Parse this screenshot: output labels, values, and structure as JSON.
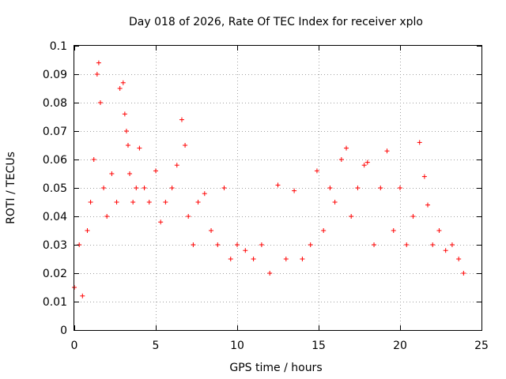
{
  "chart_data": {
    "type": "scatter",
    "title": "Day 018 of 2026, Rate Of TEC Index for receiver xplo",
    "xlabel": "GPS time / hours",
    "ylabel": "ROTI / TECUs",
    "xlim": [
      0,
      25
    ],
    "ylim": [
      0,
      0.1
    ],
    "xticks": [
      0,
      5,
      10,
      15,
      20,
      25
    ],
    "xtick_labels": [
      "0",
      "5",
      "10",
      "15",
      "20",
      "25"
    ],
    "yticks": [
      0,
      0.01,
      0.02,
      0.03,
      0.04,
      0.05,
      0.06,
      0.07,
      0.08,
      0.09,
      0.1
    ],
    "ytick_labels": [
      "0",
      "0.01",
      "0.02",
      "0.03",
      "0.04",
      "0.05",
      "0.06",
      "0.07",
      "0.08",
      "0.09",
      "0.1"
    ],
    "grid": true,
    "marker": "+",
    "marker_color": "#ff0000",
    "series": [
      {
        "x": [
          0.0,
          0.3,
          0.5,
          0.8,
          1.0,
          1.2,
          1.4,
          1.5,
          1.6,
          1.8,
          2.0,
          2.3,
          2.6,
          2.8,
          3.0,
          3.1,
          3.2,
          3.3,
          3.4,
          3.6,
          3.8,
          4.0,
          4.3,
          4.6,
          5.0,
          5.3,
          5.6,
          6.0,
          6.3,
          6.6,
          6.8,
          7.0,
          7.3,
          7.6,
          8.0,
          8.4,
          8.8,
          9.2,
          9.6,
          10.0,
          10.5,
          11.0,
          11.5,
          12.0,
          12.5,
          13.0,
          13.5,
          14.0,
          14.5,
          14.9,
          15.3,
          15.7,
          16.0,
          16.4,
          16.7,
          17.0,
          17.4,
          17.8,
          18.0,
          18.4,
          18.8,
          19.2,
          19.6,
          20.0,
          20.4,
          20.8,
          21.2,
          21.5,
          21.7,
          22.0,
          22.4,
          22.8,
          23.2,
          23.6,
          23.9
        ],
        "y": [
          0.015,
          0.03,
          0.012,
          0.035,
          0.045,
          0.06,
          0.09,
          0.094,
          0.08,
          0.05,
          0.04,
          0.055,
          0.045,
          0.085,
          0.087,
          0.076,
          0.07,
          0.065,
          0.055,
          0.045,
          0.05,
          0.064,
          0.05,
          0.045,
          0.056,
          0.038,
          0.045,
          0.05,
          0.058,
          0.074,
          0.065,
          0.04,
          0.03,
          0.045,
          0.048,
          0.035,
          0.03,
          0.05,
          0.025,
          0.03,
          0.028,
          0.025,
          0.03,
          0.02,
          0.051,
          0.025,
          0.049,
          0.025,
          0.03,
          0.056,
          0.035,
          0.05,
          0.045,
          0.06,
          0.064,
          0.04,
          0.05,
          0.058,
          0.059,
          0.03,
          0.05,
          0.063,
          0.035,
          0.05,
          0.03,
          0.04,
          0.066,
          0.054,
          0.044,
          0.03,
          0.035,
          0.028,
          0.03,
          0.025,
          0.02
        ]
      }
    ]
  }
}
